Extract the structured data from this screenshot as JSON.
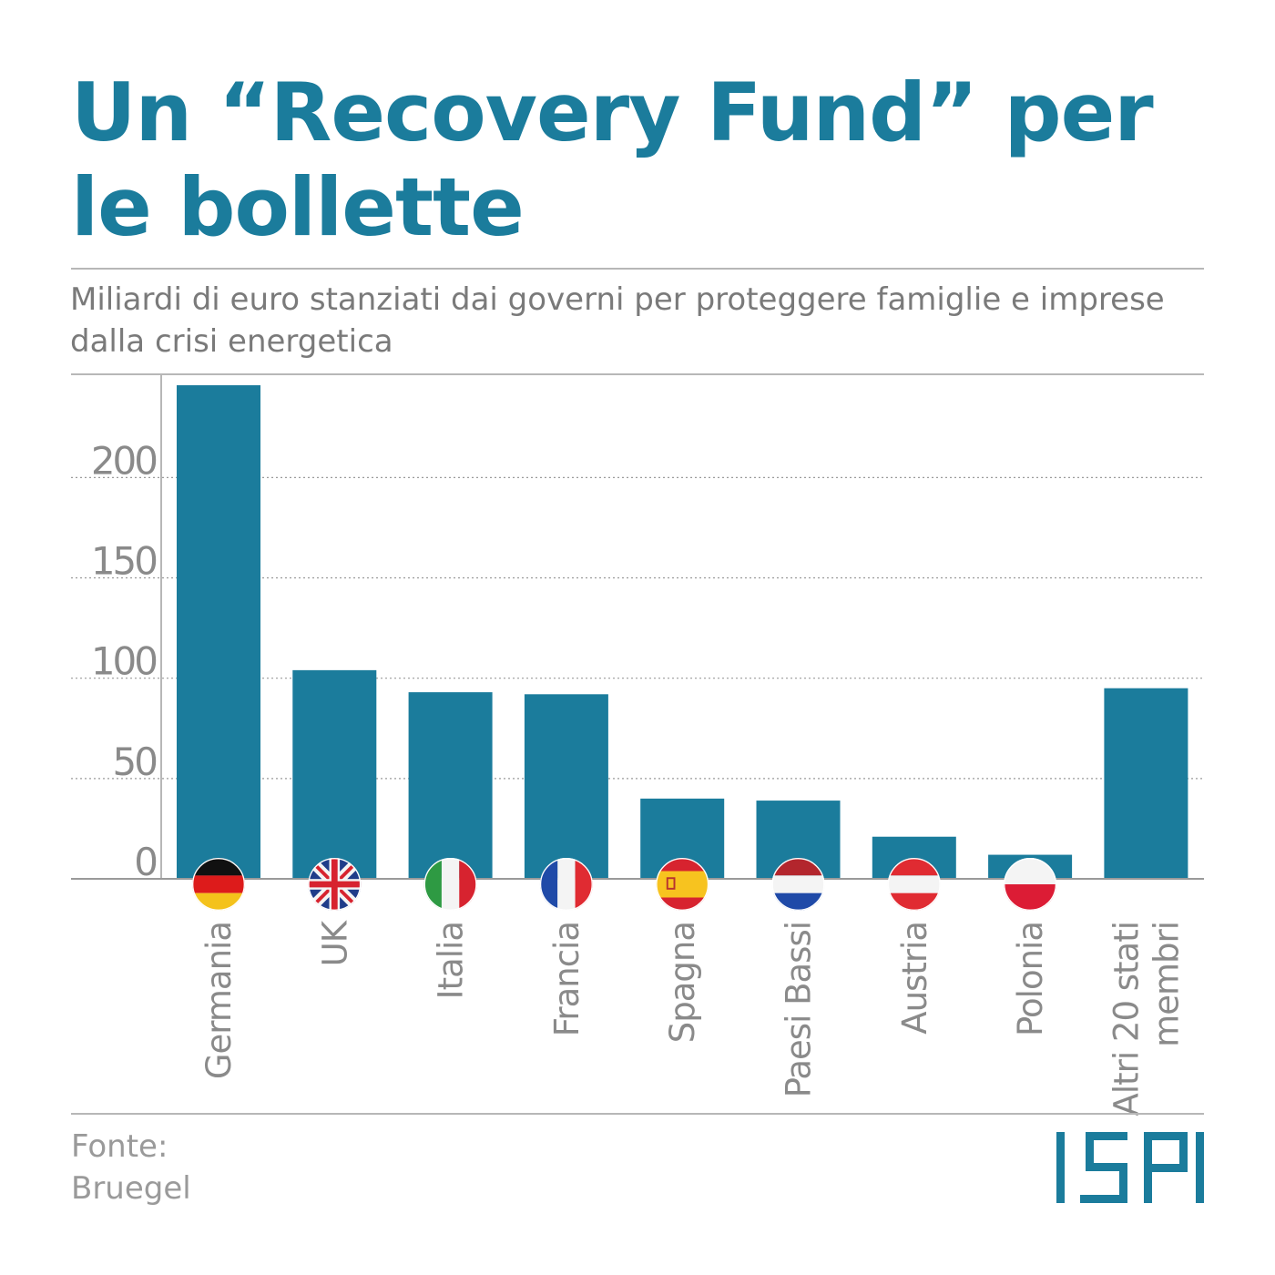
{
  "title": "Un “Recovery Fund” per le bollette",
  "subtitle": "Miliardi di euro stanziati dai governi per proteggere famiglie e imprese dalla crisi energetica",
  "source": {
    "label": "Fonte:",
    "name": "Bruegel"
  },
  "logo": {
    "text": "ISPI",
    "color": "#1b7c9c"
  },
  "colors": {
    "bar": "#1b7c9c",
    "axis_text": "#8a8a8a",
    "grid": "#9a9a9a",
    "title": "#1b7c9c"
  },
  "chart_data": {
    "type": "bar",
    "categories": [
      "Germania",
      "UK",
      "Italia",
      "Francia",
      "Spagna",
      "Paesi Bassi",
      "Austria",
      "Polonia",
      "Altri 20 stati membri"
    ],
    "category_lines": [
      [
        "Germania"
      ],
      [
        "UK"
      ],
      [
        "Italia"
      ],
      [
        "Francia"
      ],
      [
        "Spagna"
      ],
      [
        "Paesi Bassi"
      ],
      [
        "Austria"
      ],
      [
        "Polonia"
      ],
      [
        "Altri 20 stati",
        "membri"
      ]
    ],
    "flags": [
      "germany-flag",
      "uk-flag",
      "italy-flag",
      "france-flag",
      "spain-flag",
      "netherlands-flag",
      "austria-flag",
      "poland-flag",
      null
    ],
    "values": [
      246,
      104,
      93,
      92,
      40,
      39,
      21,
      12,
      95
    ],
    "yticks": [
      0,
      50,
      100,
      150,
      200
    ],
    "ylim": [
      0,
      251
    ],
    "grid": true,
    "title": "",
    "xlabel": "",
    "ylabel": ""
  }
}
